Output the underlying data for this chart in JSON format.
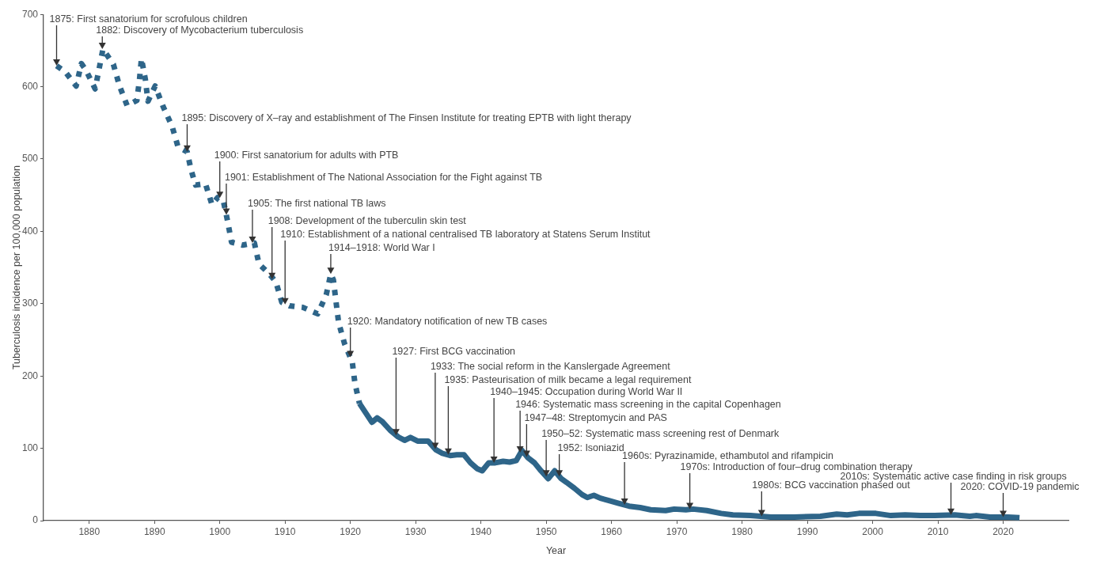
{
  "chart_data": {
    "type": "line",
    "xlabel": "Year",
    "ylabel": "Tuberculosis incidence per 100,000 population",
    "xlim": [
      1873,
      2030
    ],
    "xticks": [
      1880,
      1890,
      1900,
      1910,
      1920,
      1930,
      1940,
      1950,
      1960,
      1970,
      1980,
      1990,
      2000,
      2010,
      2020
    ],
    "ylim": [
      0,
      700
    ],
    "yticks": [
      0,
      100,
      200,
      300,
      400,
      500,
      600,
      700
    ],
    "grid": false,
    "marker": "none",
    "series": [
      {
        "type": "line",
        "line_style": "dotted",
        "color": "#2e6589",
        "x": [
          1875,
          1876.3,
          1878.0,
          1878.8,
          1879.5,
          1880.9,
          1881.5,
          1882.1,
          1883.7,
          1884.6,
          1885.8,
          1887.3,
          1887.7,
          1888.0,
          1888.6,
          1889.0,
          1890.1,
          1891.3,
          1892.7,
          1893.6,
          1895.0,
          1895.6,
          1896.3,
          1897.8,
          1898.8,
          1899.7,
          1900.5,
          1901.2,
          1901.8,
          1903.5,
          1905.3,
          1906.0,
          1907.5,
          1908.6,
          1909.5,
          1910.7,
          1912.7,
          1915.0,
          1916.3,
          1917.0,
          1917.4,
          1917.8,
          1918.2,
          1919.1,
          1920.3,
          1920.7,
          1921.4
        ],
        "values": [
          629,
          621,
          601,
          632,
          623,
          597,
          624,
          652,
          631,
          602,
          574,
          581,
          610,
          639,
          610,
          580,
          601,
          573,
          545,
          517,
          510,
          485,
          464,
          466,
          437,
          447,
          444,
          414,
          385,
          381,
          384,
          355,
          342,
          330,
          302,
          297,
          295,
          286,
          312,
          341,
          333,
          303,
          274,
          245,
          219,
          190,
          162
        ]
      },
      {
        "type": "line",
        "line_style": "solid",
        "color": "#2e6589",
        "x": [
          1921.4,
          1923.3,
          1924.1,
          1924.9,
          1926.1,
          1927.3,
          1928.3,
          1929.2,
          1930.3,
          1931.9,
          1933.1,
          1934.1,
          1935.3,
          1936.3,
          1937.4,
          1938.4,
          1939.4,
          1940.2,
          1941.2,
          1942.2,
          1943.4,
          1944.4,
          1945.4,
          1946.3,
          1947.2,
          1948.2,
          1949.2,
          1950.3,
          1951.3,
          1952.3,
          1953.1,
          1954.3,
          1955.5,
          1956.3,
          1957.3,
          1958.3,
          1959.5,
          1961.1,
          1962.7,
          1964.4,
          1966.0,
          1968.3,
          1969.6,
          1971.4,
          1972.5,
          1974.6,
          1976.8,
          1978.6,
          1981.3,
          1984.4,
          1988.0,
          1992.0,
          1994.5,
          1996.1,
          1997.9,
          2000.5,
          2002.8,
          2005.0,
          2007.3,
          2009.5,
          2012.6,
          2014.9,
          2015.8,
          2018.0,
          2020.7,
          2022.5
        ],
        "values": [
          162,
          136,
          142,
          137,
          125,
          116,
          111,
          115,
          110,
          110,
          98,
          93,
          90,
          91,
          91,
          80,
          72,
          69,
          80,
          80,
          82,
          81,
          83,
          97,
          87,
          80,
          69,
          58,
          69,
          58,
          53,
          45,
          36,
          32,
          35,
          31,
          28,
          24,
          20,
          18,
          15,
          14,
          16,
          15,
          16,
          14,
          10,
          8,
          7,
          5,
          5,
          6,
          9,
          8,
          10,
          10,
          7,
          8,
          7,
          7,
          8,
          6,
          7,
          5,
          5,
          4
        ]
      }
    ],
    "annotations": [
      {
        "text": "1875: First sanatorium for scrofulous children",
        "x": 1875,
        "y": 629
      },
      {
        "text": "1882: Discovery of Mycobacterium tuberculosis",
        "x": 1882,
        "y": 652
      },
      {
        "text": "1895: Discovery of X–ray and establishment of The Finsen Institute for treating EPTB with light therapy",
        "x": 1895,
        "y": 510
      },
      {
        "text": "1900: First sanatorium for adults with PTB",
        "x": 1900,
        "y": 446
      },
      {
        "text": "1901: Establishment of The National Association for the Fight against TB",
        "x": 1901,
        "y": 423
      },
      {
        "text": "1905: The first national TB laws",
        "x": 1905,
        "y": 384
      },
      {
        "text": "1908: Development of the tuberculin skin test",
        "x": 1908,
        "y": 334
      },
      {
        "text": "1910: Establishment of a national centralised TB laboratory at Statens Serum Institut",
        "x": 1910,
        "y": 299
      },
      {
        "text": "1914–1918: World War I",
        "x": 1917,
        "y": 341
      },
      {
        "text": "1920: Mandatory notification of new TB cases",
        "x": 1920,
        "y": 226
      },
      {
        "text": "1927: First BCG vaccination",
        "x": 1927,
        "y": 118
      },
      {
        "text": "1933: The social reform in the Kanslergade Agreement",
        "x": 1933,
        "y": 99
      },
      {
        "text": "1935: Pasteurisation of milk became a legal requirement",
        "x": 1935,
        "y": 91
      },
      {
        "text": "1940–1945: Occupation during World War II",
        "x": 1942,
        "y": 80
      },
      {
        "text": "1946: Systematic mass screening in the capital Copenhagen",
        "x": 1946,
        "y": 94
      },
      {
        "text": "1947–48: Streptomycin and PAS",
        "x": 1947,
        "y": 88
      },
      {
        "text": "1950–52: Systematic mass screening rest of Denmark",
        "x": 1950,
        "y": 61
      },
      {
        "text": "1952: Isoniazid",
        "x": 1952,
        "y": 61
      },
      {
        "text": "1960s: Pyrazinamide, ethambutol and rifampicin",
        "x": 1962,
        "y": 22
      },
      {
        "text": "1970s: Introduction of four–drug combination therapy",
        "x": 1972,
        "y": 16
      },
      {
        "text": "1980s: BCG vaccination phased out",
        "x": 1983,
        "y": 6
      },
      {
        "text": "2010s: Systematic active case finding in risk groups",
        "x": 2012,
        "y": 8
      },
      {
        "text": "2020: COVID-19 pandemic",
        "x": 2020,
        "y": 5
      }
    ]
  }
}
